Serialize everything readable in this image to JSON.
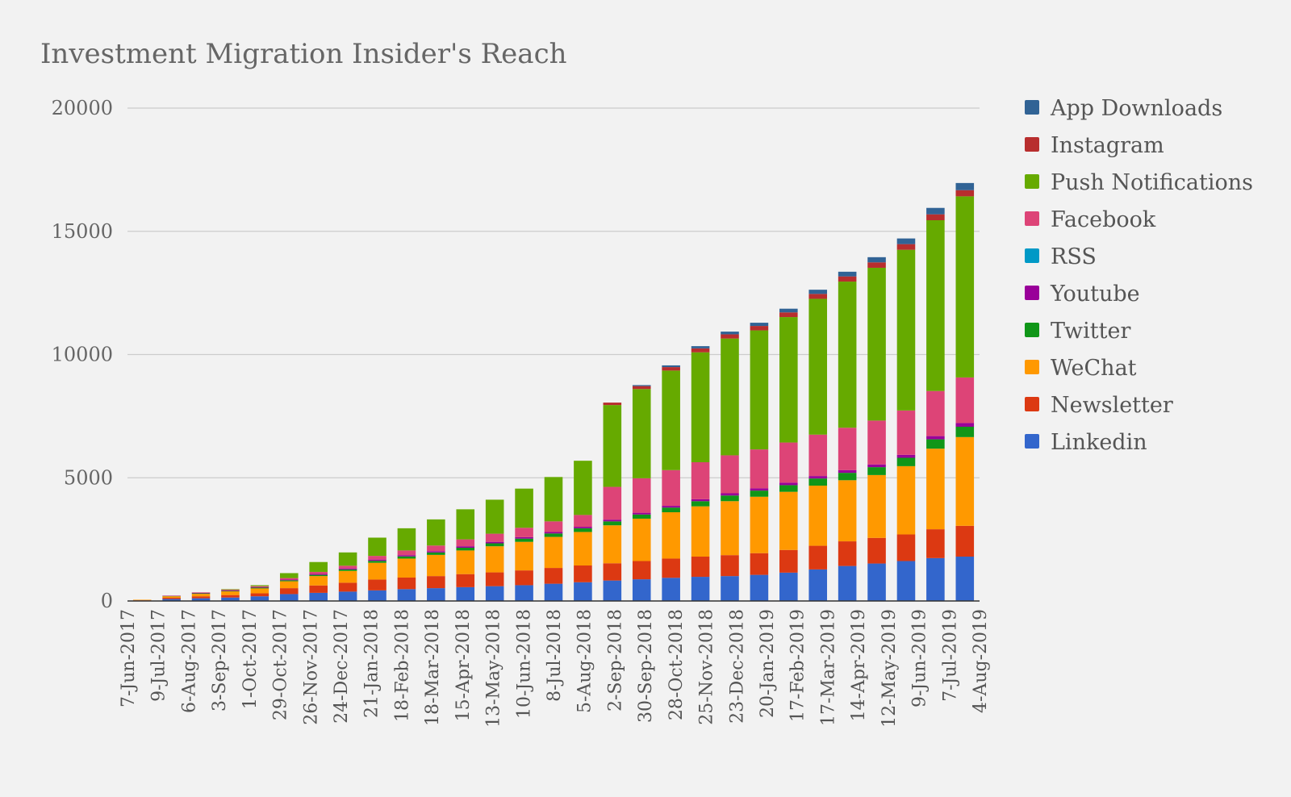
{
  "chart_data": {
    "type": "bar",
    "stacked": true,
    "title": "Investment Migration Insider's Reach",
    "xlabel": "",
    "ylabel": "",
    "ylim": [
      0,
      20000
    ],
    "yticks": [
      0,
      5000,
      10000,
      15000,
      20000
    ],
    "grid": true,
    "legend_position": "right",
    "tick_labels": [
      "7-Jun-2017",
      "9-Jul-2017",
      "6-Aug-2017",
      "3-Sep-2017",
      "1-Oct-2017",
      "29-Oct-2017",
      "26-Nov-2017",
      "24-Dec-2017",
      "21-Jan-2018",
      "18-Feb-2018",
      "18-Mar-2018",
      "15-Apr-2018",
      "13-May-2018",
      "10-Jun-2018",
      "8-Jul-2018",
      "5-Aug-2018",
      "2-Sep-2018",
      "30-Sep-2018",
      "28-Oct-2018",
      "25-Nov-2018",
      "23-Dec-2018",
      "20-Jan-2019",
      "17-Feb-2019",
      "17-Mar-2019",
      "14-Apr-2019",
      "12-May-2019",
      "9-Jun-2019",
      "7-Jul-2019",
      "4-Aug-2019"
    ],
    "categories": [
      "7-Jun-2017",
      "9-Jul-2017",
      "6-Aug-2017",
      "3-Sep-2017",
      "1-Oct-2017",
      "29-Oct-2017",
      "26-Nov-2017",
      "24-Dec-2017",
      "21-Jan-2018",
      "18-Feb-2018",
      "18-Mar-2018",
      "15-Apr-2018",
      "13-May-2018",
      "10-Jun-2018",
      "8-Jul-2018",
      "5-Aug-2018",
      "2-Sep-2018",
      "30-Sep-2018",
      "28-Oct-2018",
      "25-Nov-2018",
      "23-Dec-2018",
      "20-Jan-2019",
      "17-Feb-2019",
      "17-Mar-2019",
      "14-Apr-2019",
      "12-May-2019",
      "9-Jun-2019",
      "7-Jul-2019",
      "4-Aug-2019"
    ],
    "series": [
      {
        "name": "Linkedin",
        "color": "#3366cc",
        "values": [
          20,
          80,
          110,
          140,
          190,
          280,
          330,
          380,
          430,
          480,
          520,
          560,
          600,
          640,
          700,
          760,
          830,
          880,
          940,
          980,
          1010,
          1060,
          1150,
          1280,
          1420,
          1520,
          1620,
          1740,
          1800
        ]
      },
      {
        "name": "Newsletter",
        "color": "#dc3912",
        "values": [
          10,
          50,
          80,
          100,
          120,
          240,
          300,
          360,
          440,
          470,
          490,
          530,
          560,
          600,
          640,
          680,
          700,
          740,
          780,
          820,
          850,
          880,
          920,
          960,
          1000,
          1040,
          1080,
          1170,
          1250
        ]
      },
      {
        "name": "WeChat",
        "color": "#ff9900",
        "values": [
          20,
          60,
          100,
          150,
          200,
          280,
          380,
          480,
          680,
          770,
          860,
          960,
          1060,
          1160,
          1260,
          1360,
          1540,
          1720,
          1880,
          2040,
          2190,
          2290,
          2360,
          2440,
          2480,
          2550,
          2770,
          3270,
          3600
        ]
      },
      {
        "name": "Twitter",
        "color": "#109618",
        "values": [
          0,
          10,
          20,
          20,
          30,
          40,
          50,
          60,
          80,
          90,
          100,
          110,
          120,
          130,
          140,
          150,
          160,
          170,
          190,
          210,
          230,
          250,
          270,
          290,
          300,
          320,
          340,
          380,
          420
        ]
      },
      {
        "name": "Youtube",
        "color": "#990099",
        "values": [
          0,
          10,
          20,
          20,
          20,
          30,
          40,
          40,
          50,
          50,
          50,
          60,
          60,
          60,
          60,
          60,
          70,
          70,
          70,
          80,
          90,
          90,
          100,
          100,
          110,
          110,
          120,
          130,
          150
        ]
      },
      {
        "name": "RSS",
        "color": "#0099c6",
        "values": [
          0,
          0,
          0,
          0,
          0,
          0,
          0,
          0,
          0,
          0,
          0,
          0,
          0,
          0,
          0,
          0,
          0,
          0,
          0,
          0,
          0,
          0,
          0,
          0,
          0,
          0,
          0,
          0,
          0
        ]
      },
      {
        "name": "Facebook",
        "color": "#dd4477",
        "values": [
          0,
          10,
          20,
          30,
          40,
          60,
          80,
          110,
          150,
          190,
          230,
          280,
          330,
          380,
          430,
          480,
          1330,
          1400,
          1450,
          1500,
          1540,
          1580,
          1630,
          1680,
          1720,
          1780,
          1800,
          1830,
          1850
        ]
      },
      {
        "name": "Push Notifications",
        "color": "#66aa00",
        "values": [
          0,
          0,
          0,
          20,
          40,
          200,
          400,
          540,
          740,
          900,
          1060,
          1220,
          1380,
          1590,
          1800,
          2200,
          3320,
          3620,
          4040,
          4460,
          4740,
          4830,
          5090,
          5510,
          5930,
          6200,
          6520,
          6930,
          7350
        ]
      },
      {
        "name": "Instagram",
        "color": "#b82e2e",
        "values": [
          0,
          0,
          0,
          0,
          0,
          0,
          0,
          0,
          0,
          0,
          0,
          0,
          0,
          0,
          0,
          0,
          100,
          120,
          140,
          160,
          170,
          180,
          190,
          200,
          210,
          220,
          230,
          240,
          250
        ]
      },
      {
        "name": "App Downloads",
        "color": "#316395",
        "values": [
          0,
          0,
          0,
          0,
          0,
          0,
          0,
          0,
          0,
          0,
          0,
          0,
          0,
          0,
          0,
          0,
          0,
          40,
          70,
          90,
          110,
          130,
          150,
          170,
          190,
          210,
          230,
          260,
          290
        ]
      }
    ],
    "legend_order": [
      "App Downloads",
      "Instagram",
      "Push Notifications",
      "Facebook",
      "RSS",
      "Youtube",
      "Twitter",
      "WeChat",
      "Newsletter",
      "Linkedin"
    ]
  }
}
